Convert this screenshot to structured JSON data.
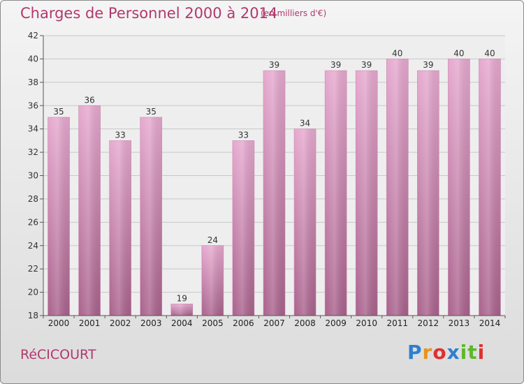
{
  "header": {
    "title": "Charges de Personnel 2000 à 2014",
    "subtitle": "(en milliers d'€)"
  },
  "footer": {
    "place": "RéCICOURT",
    "logo": {
      "letters": [
        "P",
        "r",
        "o",
        "x",
        "i",
        "t",
        "i"
      ],
      "colors": [
        "#2f7fd0",
        "#e8941a",
        "#e0302e",
        "#2f7fd0",
        "#5cb82c",
        "#5cb82c",
        "#e0302e"
      ]
    }
  },
  "chart_data": {
    "type": "bar",
    "categories": [
      "2000",
      "2001",
      "2002",
      "2003",
      "2004",
      "2005",
      "2006",
      "2007",
      "2008",
      "2009",
      "2010",
      "2011",
      "2012",
      "2013",
      "2014"
    ],
    "values": [
      35,
      36,
      33,
      35,
      19,
      24,
      33,
      39,
      34,
      39,
      39,
      40,
      39,
      40,
      40
    ],
    "title": "Charges de Personnel 2000 à 2014",
    "ylim": [
      18,
      42
    ],
    "yticks": [
      18,
      20,
      22,
      24,
      26,
      28,
      30,
      32,
      34,
      36,
      38,
      40,
      42
    ],
    "grid": true,
    "bar_color": "#d48ab5"
  }
}
